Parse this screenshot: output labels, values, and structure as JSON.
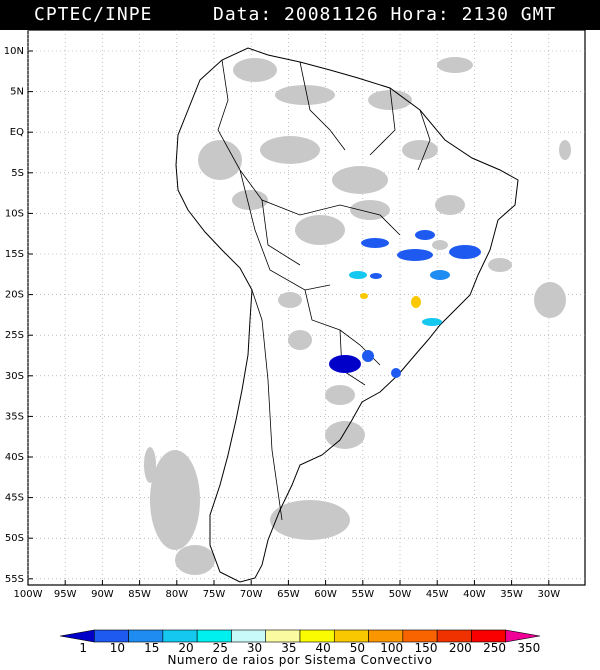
{
  "header": {
    "source": "CPTEC/INPE",
    "datetime": "Data: 20081126 Hora: 2130 GMT"
  },
  "map": {
    "lat_labels": [
      "10N",
      "5N",
      "EQ",
      "5S",
      "10S",
      "15S",
      "20S",
      "25S",
      "30S",
      "35S",
      "40S",
      "45S",
      "50S",
      "55S"
    ],
    "lon_labels": [
      "100W",
      "95W",
      "90W",
      "85W",
      "80W",
      "75W",
      "70W",
      "65W",
      "60W",
      "55W",
      "50W",
      "45W",
      "40W",
      "35W",
      "30W"
    ],
    "grid": true,
    "colors": {
      "land_border": "#000000",
      "cloud_gray": "#c8c8c8",
      "grid": "#9a9a9a"
    }
  },
  "legend": {
    "labels": [
      "1",
      "10",
      "15",
      "20",
      "25",
      "30",
      "35",
      "40",
      "50",
      "100",
      "150",
      "200",
      "250",
      "350"
    ],
    "colors": [
      "#0000c8",
      "#1e5af0",
      "#1e8cf0",
      "#14c8f0",
      "#00f0f0",
      "#c8fafa",
      "#fafaa0",
      "#fafa00",
      "#fac800",
      "#fa9600",
      "#fa6400",
      "#f03200",
      "#fa0000",
      "#f00096"
    ],
    "title": "Numero de raios por Sistema Convectivo"
  }
}
